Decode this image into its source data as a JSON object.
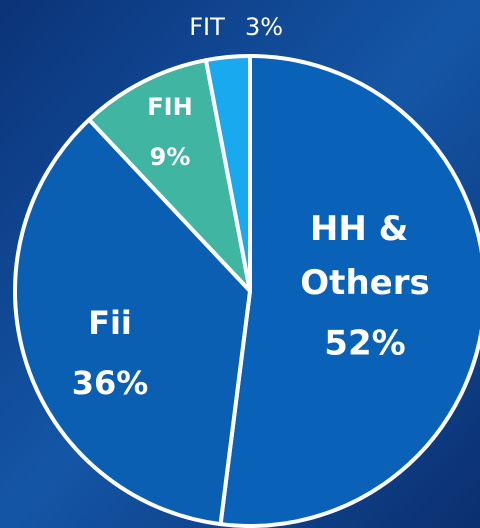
{
  "chart_data": {
    "type": "pie",
    "categories": [
      "HH & Others",
      "Fii",
      "FIH",
      "FIT"
    ],
    "values": [
      52,
      36,
      9,
      3
    ],
    "value_labels": [
      "52%",
      "36%",
      "9%",
      "3%"
    ],
    "colors": [
      "#0a62b8",
      "#0b5fb2",
      "#3fb5a2",
      "#19a9ee"
    ]
  }
}
